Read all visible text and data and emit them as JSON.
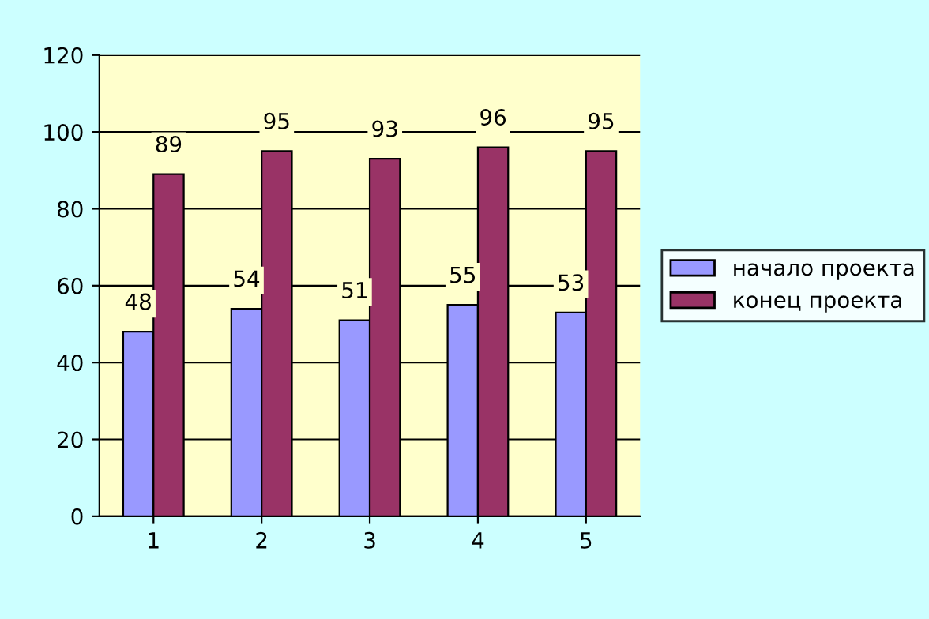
{
  "chart_data": {
    "type": "bar",
    "categories": [
      "1",
      "2",
      "3",
      "4",
      "5"
    ],
    "series": [
      {
        "name": "начало проекта",
        "color": "#9999ff",
        "values": [
          48,
          54,
          51,
          55,
          53
        ]
      },
      {
        "name": "конец проекта",
        "color": "#993366",
        "values": [
          89,
          95,
          93,
          96,
          95
        ]
      }
    ],
    "ylim": [
      0,
      120
    ],
    "yticks": [
      0,
      20,
      40,
      60,
      80,
      100,
      120
    ],
    "grid": "y",
    "legend": "right",
    "data_labels": true
  }
}
